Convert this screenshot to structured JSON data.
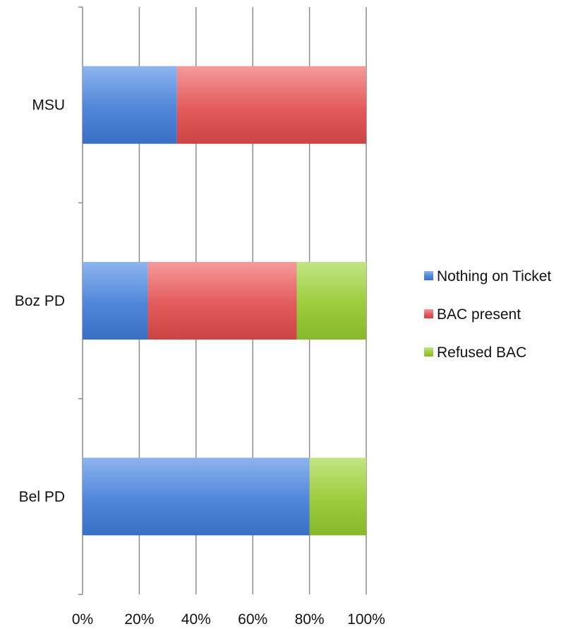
{
  "chart_data": {
    "type": "bar",
    "orientation": "horizontal",
    "stacked": "percent",
    "title": "",
    "xlabel": "",
    "ylabel": "",
    "xlim": [
      0,
      100
    ],
    "x_ticks": [
      "0%",
      "20%",
      "40%",
      "60%",
      "80%",
      "100%"
    ],
    "categories": [
      "MSU",
      "Boz PD",
      "Bel PD"
    ],
    "series": [
      {
        "name": "Nothing on Ticket",
        "color": "#4f86d9",
        "values": [
          33.3,
          23,
          80
        ]
      },
      {
        "name": "BAC present",
        "color": "#e35a5a",
        "values": [
          66.7,
          52.5,
          0
        ]
      },
      {
        "name": "Refused BAC",
        "color": "#9ccc3c",
        "values": [
          0,
          24.5,
          20
        ]
      }
    ],
    "grid": true,
    "legend_position": "right"
  }
}
